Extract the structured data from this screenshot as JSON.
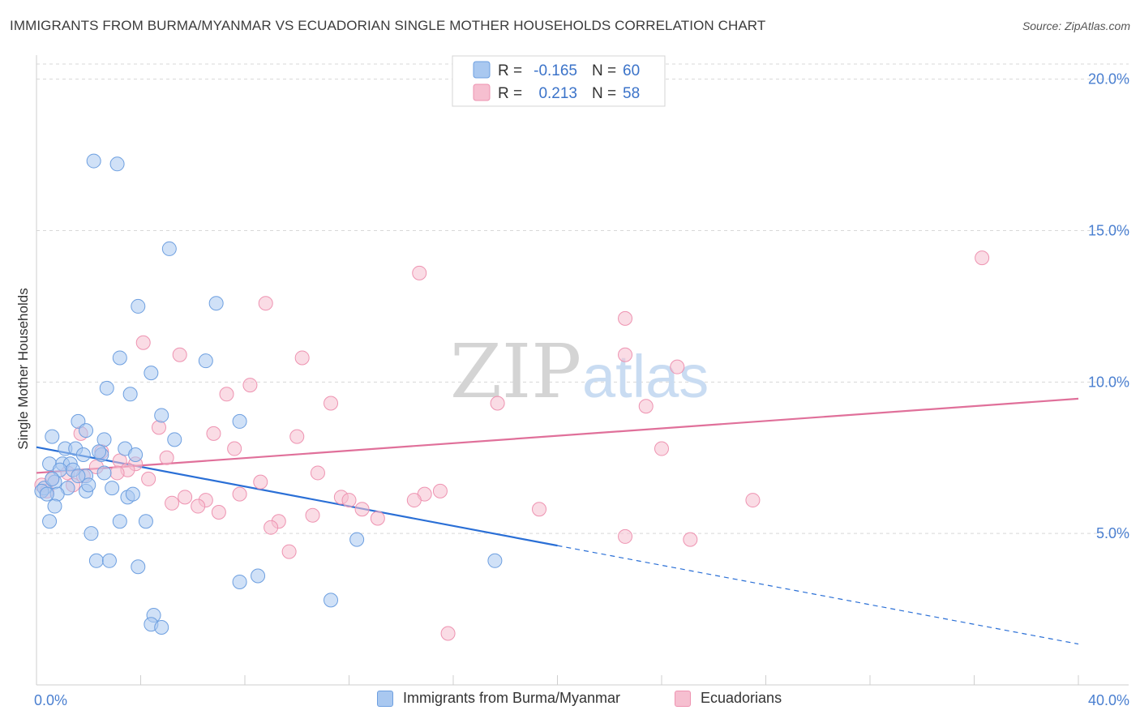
{
  "title": "IMMIGRANTS FROM BURMA/MYANMAR VS ECUADORIAN SINGLE MOTHER HOUSEHOLDS CORRELATION CHART",
  "source": "Source: ZipAtlas.com",
  "watermark": {
    "zip": "ZIP",
    "atlas": "atlas"
  },
  "legend_top": {
    "rows": [
      {
        "r_label": "R =",
        "r_value": "-0.165",
        "n_label": "N =",
        "n_value": "60"
      },
      {
        "r_label": "R =",
        "r_value": "0.213",
        "n_label": "N =",
        "n_value": "58"
      }
    ]
  },
  "legend_bottom": {
    "items": [
      {
        "label": "Immigrants from Burma/Myanmar"
      },
      {
        "label": "Ecuadorians"
      }
    ]
  },
  "colors": {
    "blue_fill": "#a9c8f0",
    "blue_stroke": "#6d9fe0",
    "blue_line": "#2a6fd6",
    "pink_fill": "#f6bfd0",
    "pink_stroke": "#ee93b1",
    "pink_line": "#e0709a",
    "tick_text": "#4a7fd0",
    "grid": "#d8d8d8"
  },
  "chart_data": {
    "type": "scatter",
    "title": "IMMIGRANTS FROM BURMA/MYANMAR VS ECUADORIAN SINGLE MOTHER HOUSEHOLDS CORRELATION CHART",
    "xlabel": "",
    "ylabel": "Single Mother Households",
    "xlim": [
      0,
      40
    ],
    "ylim": [
      0,
      20.5
    ],
    "x_tick_labels": [
      "0.0%",
      "40.0%"
    ],
    "y_ticks": [
      5,
      10,
      15,
      20
    ],
    "y_tick_labels": [
      "5.0%",
      "10.0%",
      "15.0%",
      "20.0%"
    ],
    "grid": true,
    "legend": "top-center",
    "series": [
      {
        "name": "Immigrants from Burma/Myanmar",
        "color": "#a9c8f0",
        "r": -0.165,
        "n": 60,
        "trend": {
          "x0": 0,
          "y0": 7.85,
          "x1": 20,
          "y1": 4.6,
          "dashed_to_x": 40,
          "dashed_to_y": 1.35
        },
        "points": [
          [
            2.2,
            17.3
          ],
          [
            3.1,
            17.2
          ],
          [
            5.1,
            14.4
          ],
          [
            3.9,
            12.5
          ],
          [
            6.9,
            12.6
          ],
          [
            3.2,
            10.8
          ],
          [
            6.5,
            10.7
          ],
          [
            4.4,
            10.3
          ],
          [
            2.7,
            9.8
          ],
          [
            3.6,
            9.6
          ],
          [
            4.8,
            8.9
          ],
          [
            1.6,
            8.7
          ],
          [
            7.8,
            8.7
          ],
          [
            0.6,
            8.2
          ],
          [
            1.9,
            8.4
          ],
          [
            2.6,
            8.1
          ],
          [
            5.3,
            8.1
          ],
          [
            1.1,
            7.8
          ],
          [
            1.5,
            7.8
          ],
          [
            2.5,
            7.6
          ],
          [
            3.4,
            7.8
          ],
          [
            3.8,
            7.6
          ],
          [
            0.5,
            7.3
          ],
          [
            1.8,
            7.6
          ],
          [
            2.4,
            7.7
          ],
          [
            1.0,
            7.3
          ],
          [
            1.3,
            7.3
          ],
          [
            0.9,
            7.1
          ],
          [
            1.4,
            7.1
          ],
          [
            2.6,
            7.0
          ],
          [
            0.7,
            6.7
          ],
          [
            1.9,
            6.9
          ],
          [
            0.3,
            6.5
          ],
          [
            1.2,
            6.5
          ],
          [
            1.9,
            6.4
          ],
          [
            2.0,
            6.6
          ],
          [
            2.9,
            6.5
          ],
          [
            0.8,
            6.3
          ],
          [
            3.5,
            6.2
          ],
          [
            3.7,
            6.3
          ],
          [
            0.2,
            6.4
          ],
          [
            0.4,
            6.3
          ],
          [
            0.7,
            5.9
          ],
          [
            0.5,
            5.4
          ],
          [
            3.2,
            5.4
          ],
          [
            4.2,
            5.4
          ],
          [
            2.1,
            5.0
          ],
          [
            12.3,
            4.8
          ],
          [
            2.3,
            4.1
          ],
          [
            2.8,
            4.1
          ],
          [
            3.9,
            3.9
          ],
          [
            17.6,
            4.1
          ],
          [
            8.5,
            3.6
          ],
          [
            7.8,
            3.4
          ],
          [
            11.3,
            2.8
          ],
          [
            4.5,
            2.3
          ],
          [
            4.4,
            2.0
          ],
          [
            4.8,
            1.9
          ],
          [
            0.6,
            6.8
          ],
          [
            1.6,
            6.9
          ]
        ]
      },
      {
        "name": "Ecuadorians",
        "color": "#f6bfd0",
        "r": 0.213,
        "n": 58,
        "trend": {
          "x0": 0,
          "y0": 7.0,
          "x1": 40,
          "y1": 9.45
        },
        "points": [
          [
            36.3,
            14.1
          ],
          [
            14.7,
            13.6
          ],
          [
            8.8,
            12.6
          ],
          [
            22.6,
            12.1
          ],
          [
            4.1,
            11.3
          ],
          [
            5.5,
            10.9
          ],
          [
            10.2,
            10.8
          ],
          [
            22.6,
            10.9
          ],
          [
            24.6,
            10.5
          ],
          [
            8.2,
            9.9
          ],
          [
            7.3,
            9.6
          ],
          [
            11.3,
            9.3
          ],
          [
            17.7,
            9.3
          ],
          [
            23.4,
            9.2
          ],
          [
            4.7,
            8.5
          ],
          [
            6.8,
            8.3
          ],
          [
            1.7,
            8.3
          ],
          [
            10.0,
            8.2
          ],
          [
            7.6,
            7.8
          ],
          [
            24.0,
            7.8
          ],
          [
            2.5,
            7.7
          ],
          [
            5.0,
            7.5
          ],
          [
            3.8,
            7.3
          ],
          [
            3.2,
            7.4
          ],
          [
            2.3,
            7.2
          ],
          [
            3.5,
            7.1
          ],
          [
            1.2,
            7.0
          ],
          [
            1.8,
            6.9
          ],
          [
            3.1,
            7.0
          ],
          [
            10.8,
            7.0
          ],
          [
            4.3,
            6.8
          ],
          [
            8.6,
            6.7
          ],
          [
            0.6,
            6.8
          ],
          [
            1.4,
            6.6
          ],
          [
            0.2,
            6.6
          ],
          [
            0.4,
            6.4
          ],
          [
            14.9,
            6.3
          ],
          [
            7.8,
            6.3
          ],
          [
            11.7,
            6.2
          ],
          [
            12.0,
            6.1
          ],
          [
            14.5,
            6.1
          ],
          [
            15.5,
            6.4
          ],
          [
            5.7,
            6.2
          ],
          [
            6.5,
            6.1
          ],
          [
            5.2,
            6.0
          ],
          [
            27.5,
            6.1
          ],
          [
            6.2,
            5.9
          ],
          [
            7.0,
            5.7
          ],
          [
            12.5,
            5.8
          ],
          [
            19.3,
            5.8
          ],
          [
            10.6,
            5.6
          ],
          [
            13.1,
            5.5
          ],
          [
            9.3,
            5.4
          ],
          [
            9.0,
            5.2
          ],
          [
            22.6,
            4.9
          ],
          [
            25.1,
            4.8
          ],
          [
            9.7,
            4.4
          ],
          [
            15.8,
            1.7
          ]
        ]
      }
    ]
  }
}
